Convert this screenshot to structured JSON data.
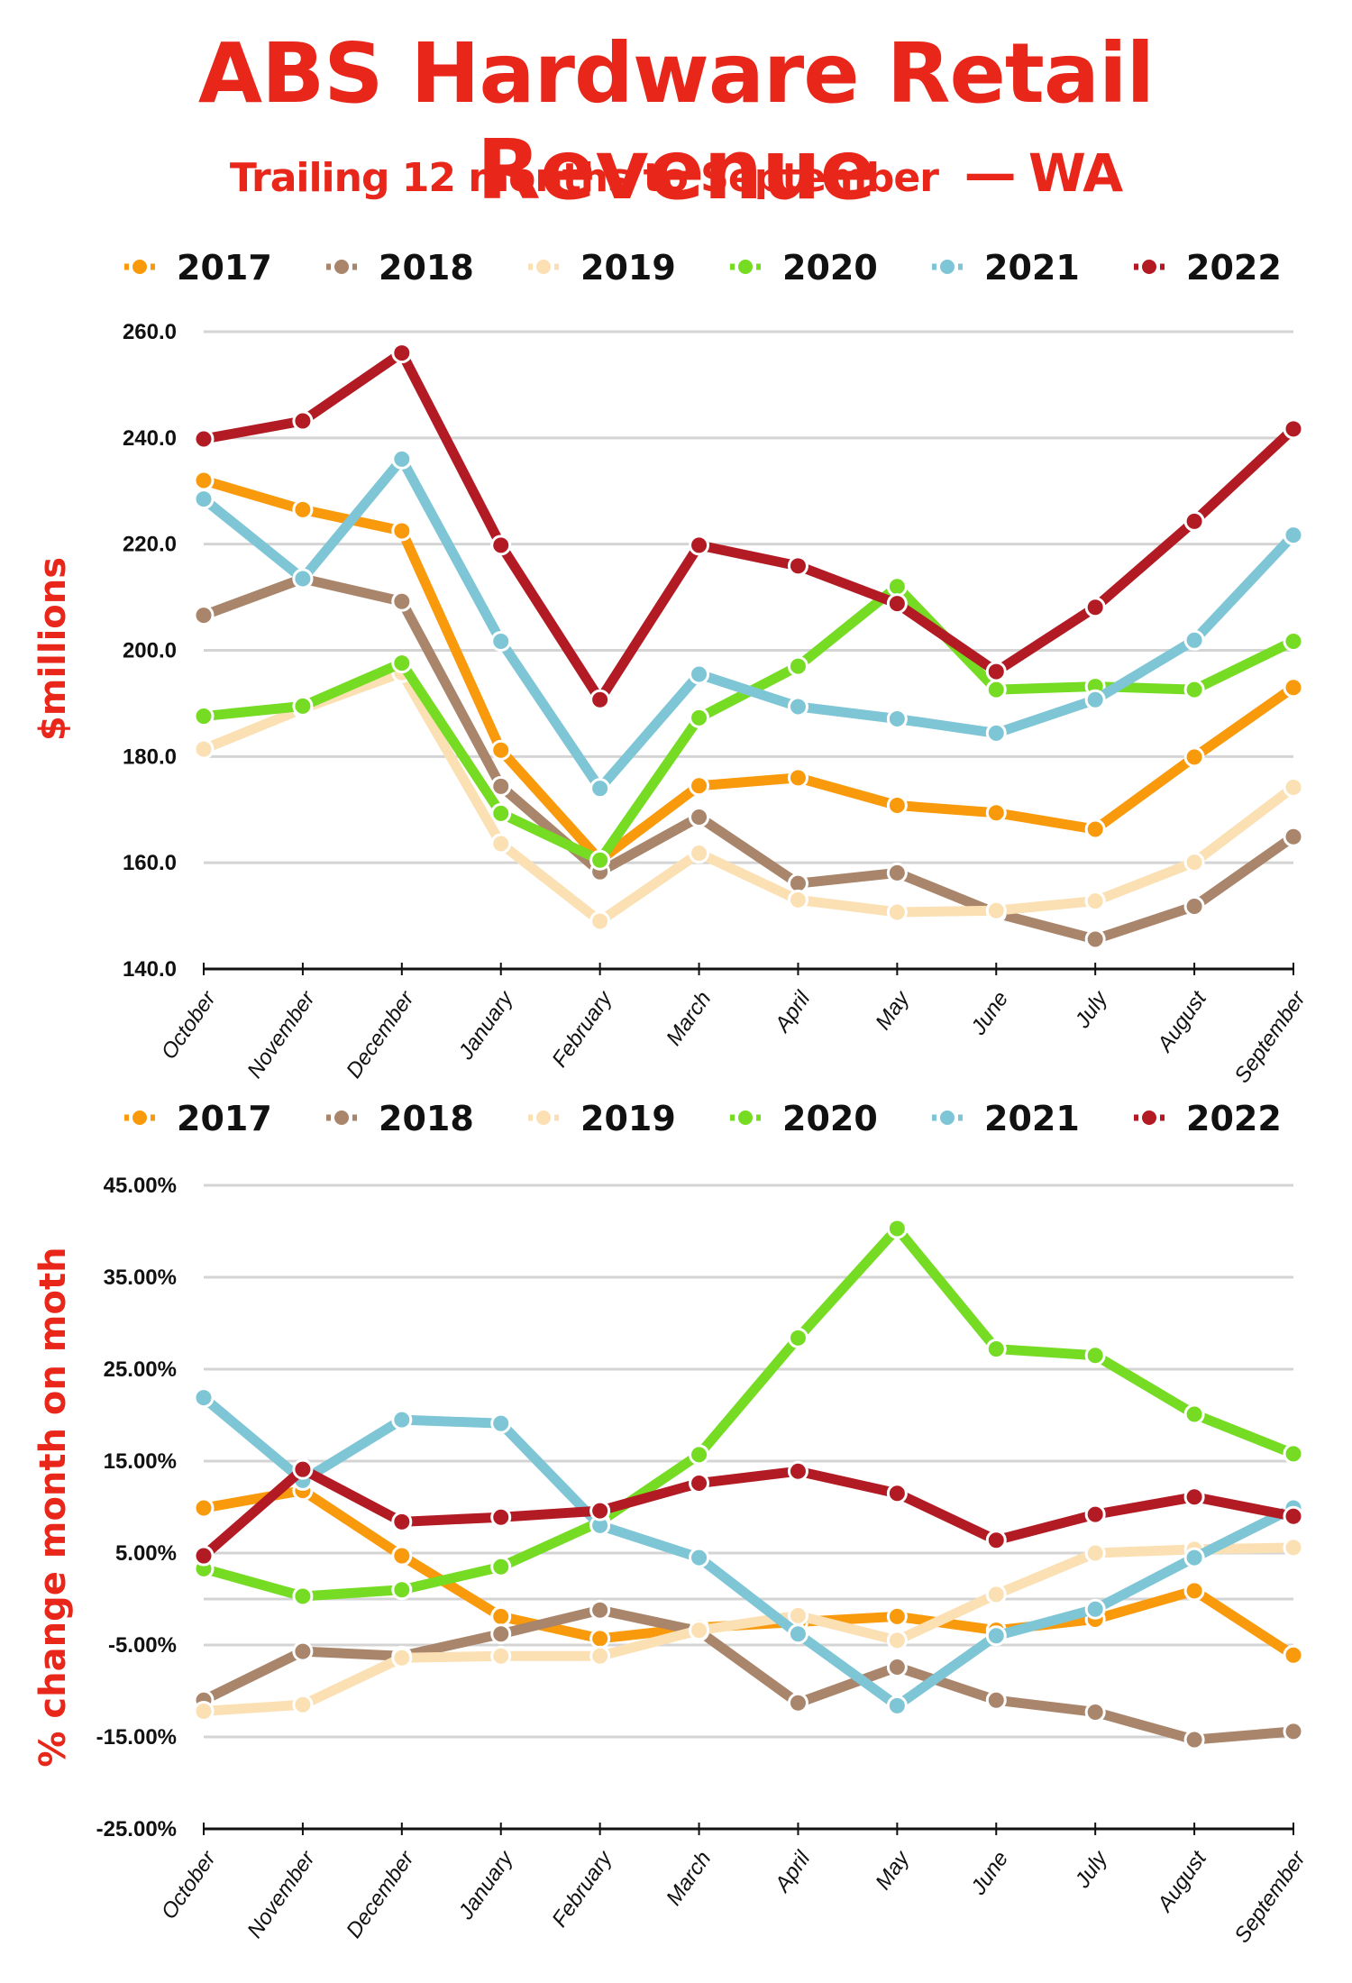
{
  "header": {
    "title": "ABS Hardware Retail Revenue",
    "subtitle_main": "Trailing 12 months to September",
    "subtitle_dash": "—",
    "subtitle_region": "WA"
  },
  "colors": {
    "title": "#e8261a",
    "2017": "#f99a0c",
    "2018": "#a9856b",
    "2019": "#fbe0b4",
    "2020": "#76db23",
    "2021": "#7ec6d6",
    "2022": "#b31b24",
    "grid": "#d4d4d4"
  },
  "chart_data": [
    {
      "type": "line",
      "title": "ABS Hardware Retail Revenue — Trailing 12 months to September — WA",
      "xlabel": "",
      "ylabel": "$millions",
      "ylim": [
        140,
        260
      ],
      "yticks": [
        "260.0",
        "240.0",
        "220.0",
        "200.0",
        "180.0",
        "160.0",
        "140.0"
      ],
      "ytick_values": [
        260,
        240,
        220,
        200,
        180,
        160,
        140
      ],
      "grid": true,
      "legend": "top",
      "categories": [
        "October",
        "November",
        "December",
        "January",
        "February",
        "March",
        "April",
        "May",
        "June",
        "July",
        "August",
        "September"
      ],
      "series": [
        {
          "name": "2017",
          "values": [
            232.0,
            226.5,
            222.5,
            181.2,
            160.5,
            174.5,
            176.0,
            170.8,
            169.4,
            166.3,
            179.9,
            193.0
          ]
        },
        {
          "name": "2018",
          "values": [
            206.6,
            213.5,
            209.2,
            174.4,
            158.3,
            168.6,
            156.1,
            158.1,
            150.5,
            145.6,
            151.8,
            164.9
          ]
        },
        {
          "name": "2019",
          "values": [
            181.4,
            189.0,
            195.8,
            163.6,
            149.0,
            161.8,
            153.0,
            150.7,
            151.0,
            152.8,
            160.1,
            174.2
          ]
        },
        {
          "name": "2020",
          "values": [
            187.6,
            189.5,
            197.6,
            169.3,
            160.5,
            187.3,
            197.0,
            212.0,
            192.6,
            193.2,
            192.6,
            201.7
          ]
        },
        {
          "name": "2021",
          "values": [
            228.5,
            213.5,
            236.0,
            201.7,
            174.0,
            195.5,
            189.4,
            187.1,
            184.4,
            190.7,
            201.9,
            221.7
          ]
        },
        {
          "name": "2022",
          "values": [
            239.8,
            243.2,
            256.0,
            219.8,
            190.7,
            219.8,
            215.9,
            208.8,
            196.0,
            208.1,
            224.3,
            241.7
          ]
        }
      ]
    },
    {
      "type": "line",
      "title": "",
      "xlabel": "",
      "ylabel": "% change month on moth",
      "ylim": [
        -25,
        45
      ],
      "yticks": [
        "45.00%",
        "35.00%",
        "25.00%",
        "15.00%",
        "5.00%",
        "-5.00%",
        "-15.00%",
        "-25.00%"
      ],
      "ytick_values": [
        45,
        35,
        25,
        15,
        5,
        -5,
        -15,
        -25
      ],
      "extra_gridline": 0,
      "grid": true,
      "legend": "top",
      "categories": [
        "October",
        "November",
        "December",
        "January",
        "February",
        "March",
        "April",
        "May",
        "June",
        "July",
        "August",
        "September"
      ],
      "series": [
        {
          "name": "2017",
          "values": [
            9.9,
            11.8,
            4.7,
            -1.9,
            -4.3,
            -3.1,
            -2.5,
            -1.9,
            -3.4,
            -2.2,
            0.9,
            -6.1
          ]
        },
        {
          "name": "2018",
          "values": [
            -11.0,
            -5.7,
            -6.2,
            -3.8,
            -1.2,
            -3.5,
            -11.3,
            -7.4,
            -11.0,
            -12.3,
            -15.3,
            -14.4
          ]
        },
        {
          "name": "2019",
          "values": [
            -12.2,
            -11.5,
            -6.4,
            -6.2,
            -6.2,
            -3.4,
            -1.8,
            -4.5,
            0.5,
            5.0,
            5.4,
            5.6
          ]
        },
        {
          "name": "2020",
          "values": [
            3.3,
            0.3,
            1.0,
            3.5,
            8.4,
            15.7,
            28.4,
            40.3,
            27.2,
            26.5,
            20.1,
            15.8
          ]
        },
        {
          "name": "2021",
          "values": [
            21.9,
            12.9,
            19.5,
            19.1,
            8.0,
            4.5,
            -3.8,
            -11.6,
            -4.0,
            -1.1,
            4.5,
            9.9
          ]
        },
        {
          "name": "2022",
          "values": [
            4.7,
            14.1,
            8.4,
            8.9,
            9.6,
            12.6,
            13.9,
            11.5,
            6.4,
            9.2,
            11.1,
            9.0
          ]
        }
      ]
    }
  ]
}
